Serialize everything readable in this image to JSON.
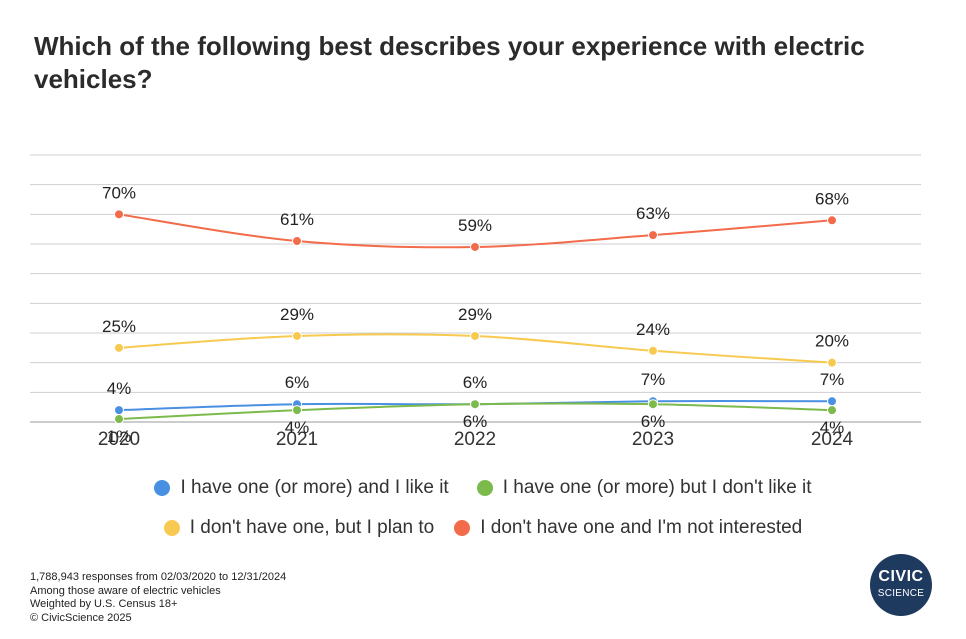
{
  "title": "Which of the following best describes your experience with electric vehicles?",
  "chart_data": {
    "type": "line",
    "categories": [
      "2020",
      "2021",
      "2022",
      "2023",
      "2024"
    ],
    "ylim": [
      0,
      90
    ],
    "grid": true,
    "series": [
      {
        "name": "I don't have one and I'm not interested",
        "color": "#f26b4a",
        "values": [
          70,
          61,
          59,
          63,
          68
        ],
        "labels": [
          "70%",
          "61%",
          "59%",
          "63%",
          "68%"
        ]
      },
      {
        "name": "I don't have one, but I plan to",
        "color": "#f7ca4f",
        "values": [
          25,
          29,
          29,
          24,
          20
        ],
        "labels": [
          "25%",
          "29%",
          "29%",
          "24%",
          "20%"
        ]
      },
      {
        "name": "I have one (or more) and I like it",
        "color": "#4a90e2",
        "values": [
          4,
          6,
          6,
          7,
          7
        ],
        "labels": [
          "4%",
          "6%",
          "6%",
          "7%",
          "7%"
        ]
      },
      {
        "name": "I have one (or more) but I don't like it",
        "color": "#7cba4c",
        "values": [
          1,
          4,
          6,
          6,
          4
        ],
        "labels": [
          "1%",
          "4%",
          "6%",
          "6%",
          "4%"
        ]
      }
    ]
  },
  "legend": {
    "row1": [
      {
        "label": "I have one (or more) and I like it",
        "color": "#4a90e2"
      },
      {
        "label": "I have one (or more) but I don't like it",
        "color": "#7cba4c"
      }
    ],
    "row2": [
      {
        "label": "I don't have one, but I plan to",
        "color": "#f7ca4f"
      },
      {
        "label": "I don't have one and I'm not interested",
        "color": "#f26b4a"
      }
    ]
  },
  "footnotes": [
    "1,788,943 responses from 02/03/2020 to 12/31/2024",
    "Among those aware of electric vehicles",
    "Weighted by U.S. Census 18+",
    "© CivicScience 2025"
  ],
  "logo": {
    "line1": "CIVIC",
    "line2": "SCIENCE"
  }
}
